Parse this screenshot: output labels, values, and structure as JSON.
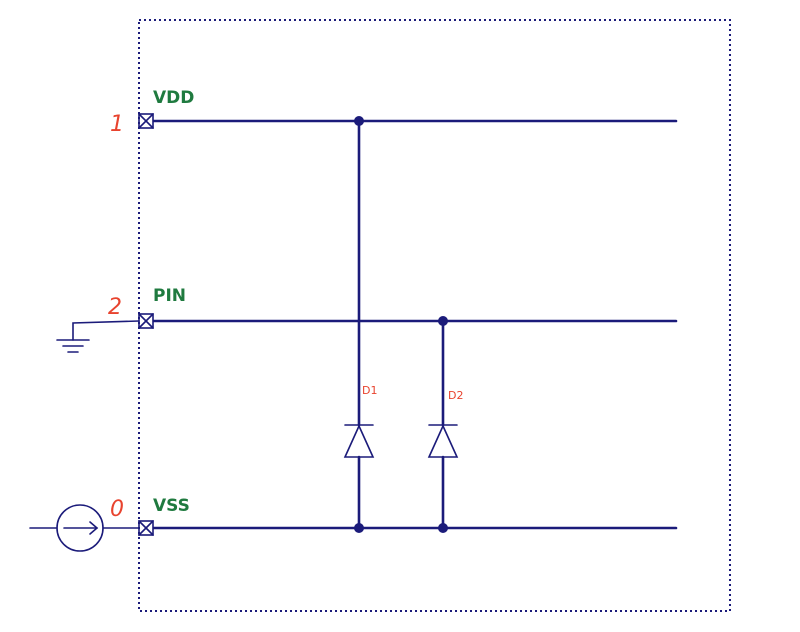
{
  "pins": [
    {
      "number": "1",
      "name": "VDD"
    },
    {
      "number": "2",
      "name": "PIN"
    },
    {
      "number": "0",
      "name": "VSS"
    }
  ],
  "diodes": [
    {
      "label": "D1"
    },
    {
      "label": "D2"
    }
  ],
  "colors": {
    "wire": "#1b1b7a",
    "pin_number": "#e8432e",
    "pin_name": "#1f7a3f",
    "diode_label": "#e8432e"
  }
}
